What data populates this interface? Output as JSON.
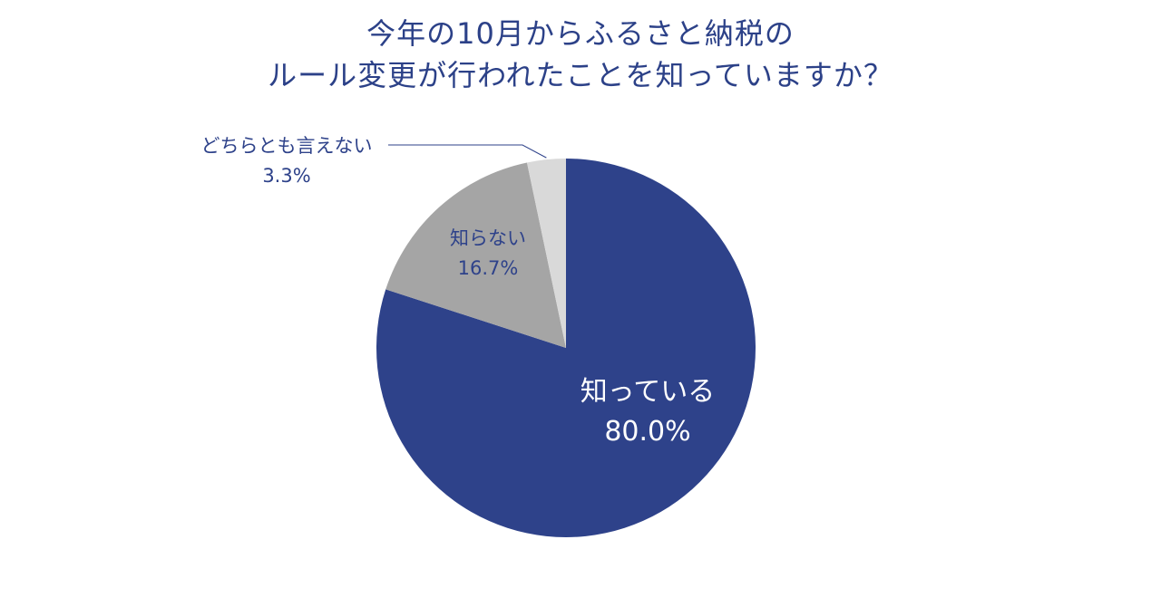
{
  "chart_data": {
    "type": "pie",
    "title_lines": [
      "今年の10月からふるさと納税の",
      "ルール変更が行われたことを知っていますか？"
    ],
    "slices": [
      {
        "label": "知っている",
        "value": 80.0,
        "value_label": "80.0%",
        "color": "#2e428a",
        "text_color": "#ffffff"
      },
      {
        "label": "知らない",
        "value": 16.7,
        "value_label": "16.7%",
        "color": "#a5a5a5",
        "text_color": "#2e428a"
      },
      {
        "label": "どちらとも言えない",
        "value": 3.3,
        "value_label": "3.3%",
        "color": "#d9d9d9",
        "text_color": "#2e428a"
      }
    ],
    "start_angle": "12 o'clock",
    "direction": "clockwise",
    "legend": "none"
  }
}
